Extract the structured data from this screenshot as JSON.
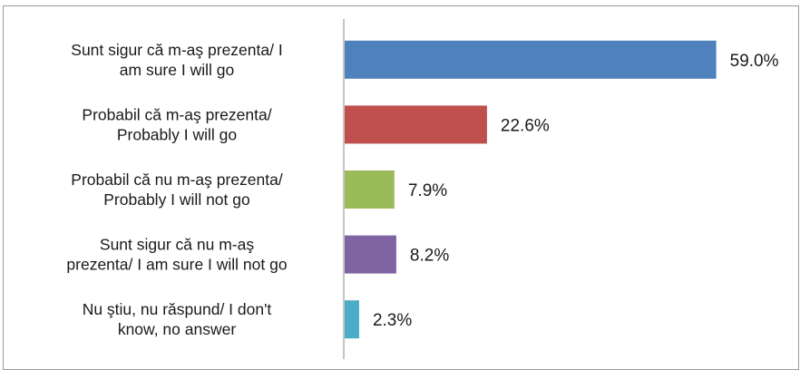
{
  "chart_data": {
    "type": "bar",
    "orientation": "horizontal",
    "categories": [
      [
        "Sunt sigur că m-aş prezenta/ I",
        "am sure I will go"
      ],
      [
        "Probabil că m-aş prezenta/",
        "Probably I will go"
      ],
      [
        "Probabil că nu m-aş prezenta/",
        "Probably I will not go"
      ],
      [
        "Sunt sigur că nu m-aş",
        "prezenta/ I am sure I will not go"
      ],
      [
        "Nu ştiu, nu răspund/ I don't",
        "know, no answer"
      ]
    ],
    "values": [
      59.0,
      22.6,
      7.9,
      8.2,
      2.3
    ],
    "value_labels": [
      "59.0%",
      "22.6%",
      "7.9%",
      "8.2%",
      "2.3%"
    ],
    "colors": [
      "#4f81bd",
      "#c0504d",
      "#9bbb59",
      "#8064a2",
      "#4bacc6"
    ],
    "xlim": [
      0,
      70
    ],
    "grid": false,
    "legend": "none"
  }
}
